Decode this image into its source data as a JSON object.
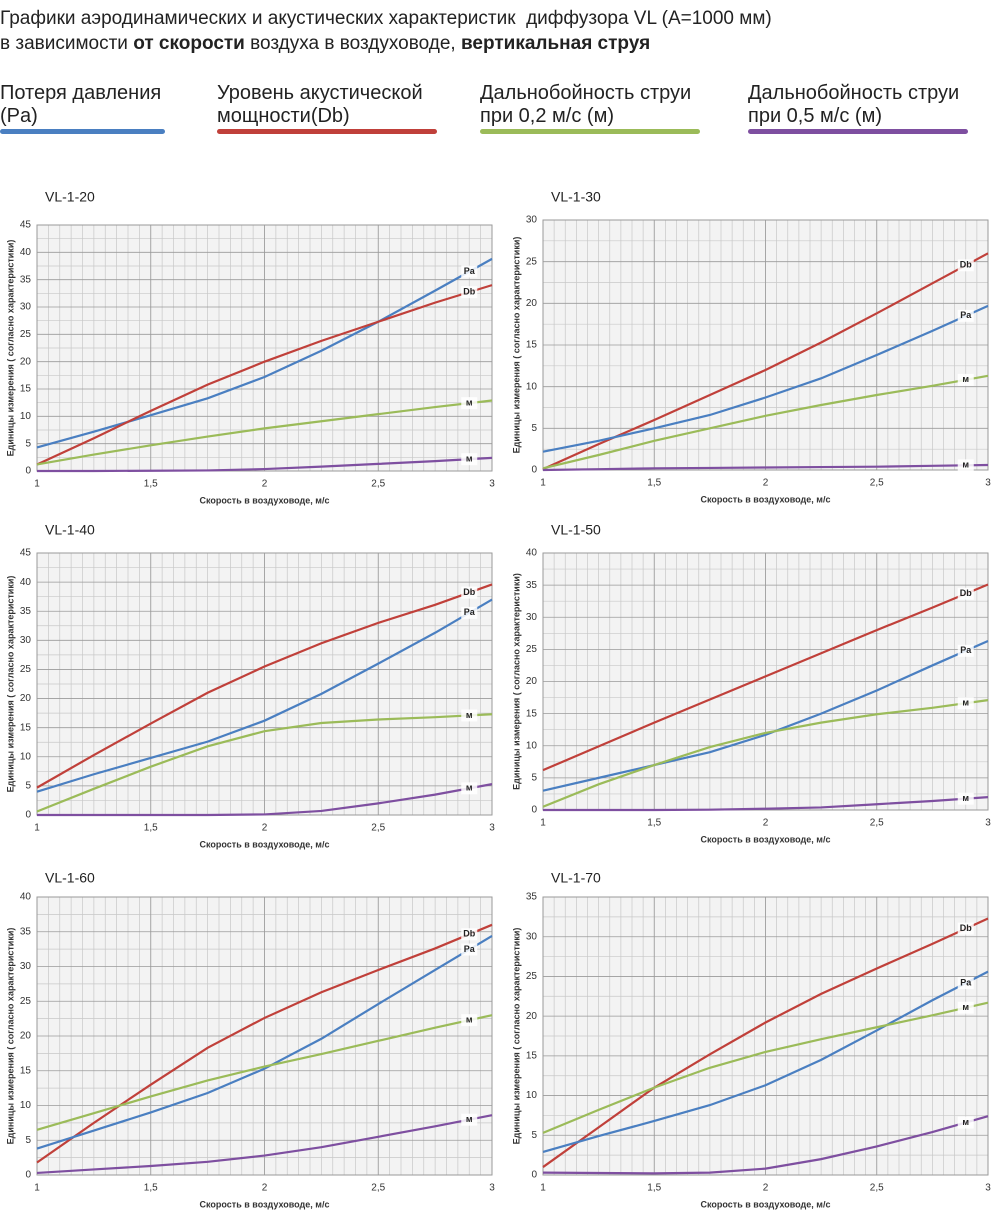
{
  "header": {
    "line1": "Графики аэродинамических и акустических характеристик  диффузора VL (A=1000 мм)",
    "line2": [
      {
        "text": "в зависимости ",
        "bold": false
      },
      {
        "text": "от скорости",
        "bold": true
      },
      {
        "text": " воздуха в воздуховоде, ",
        "bold": false
      },
      {
        "text": "вертикальная струя",
        "bold": true
      }
    ]
  },
  "legend": [
    {
      "name": "Потеря давления (Pa)",
      "color": "#4a7fc1"
    },
    {
      "name": "Уровень акустической мощности(Db)",
      "color": "#c0403a"
    },
    {
      "name": "Дальнобойность струи при 0,2 м/с (м)",
      "color": "#9bbb59"
    },
    {
      "name": "Дальнобойность струи при 0,5 м/с (м)",
      "color": "#7e4fa0"
    }
  ],
  "chart_data": [
    {
      "type": "line",
      "title": "VL-1-20",
      "x_label": "Скорость в воздуховоде, м/с",
      "y_label": "Единицы измерения ( согласно характеристики)",
      "x": [
        1,
        1.25,
        1.5,
        1.75,
        2,
        2.25,
        2.5,
        2.75,
        3
      ],
      "xlim": [
        1,
        3
      ],
      "xticks": [
        1,
        {
          "value": 1.5,
          "label": "1,5"
        },
        2,
        {
          "value": 2.5,
          "label": "2,5"
        },
        3
      ],
      "ylim": [
        0,
        45
      ],
      "yticks": [
        0,
        5,
        10,
        15,
        20,
        25,
        30,
        35,
        40,
        45
      ],
      "grid": true,
      "series": [
        {
          "label": "Pa",
          "color": "#4a7fc1",
          "values": [
            4.3,
            7.2,
            10.2,
            13.3,
            17.2,
            22,
            27.3,
            33,
            38.8
          ]
        },
        {
          "label": "Db",
          "color": "#c0403a",
          "values": [
            1.2,
            6,
            11,
            15.8,
            20,
            23.8,
            27.3,
            30.8,
            34
          ]
        },
        {
          "label": "м",
          "color": "#9bbb59",
          "values": [
            1.2,
            3,
            4.7,
            6.3,
            7.8,
            9.1,
            10.4,
            11.7,
            12.9
          ]
        },
        {
          "label": "м",
          "color": "#7e4fa0",
          "values": [
            0,
            0,
            0.05,
            0.1,
            0.35,
            0.8,
            1.3,
            1.8,
            2.4
          ]
        }
      ]
    },
    {
      "type": "line",
      "title": "VL-1-30",
      "x_label": "Скорость в воздуховоде, м/с",
      "y_label": "Единицы измерения ( согласно характеристики)",
      "x": [
        1,
        1.25,
        1.5,
        1.75,
        2,
        2.25,
        2.5,
        2.75,
        3
      ],
      "xlim": [
        1,
        3
      ],
      "xticks": [
        1,
        {
          "value": 1.5,
          "label": "1,5"
        },
        2,
        {
          "value": 2.5,
          "label": "2,5"
        },
        3
      ],
      "ylim": [
        0,
        30
      ],
      "yticks": [
        0,
        5,
        10,
        15,
        20,
        25,
        30
      ],
      "grid": true,
      "series": [
        {
          "label": "Db",
          "color": "#c0403a",
          "values": [
            0.1,
            3.1,
            6,
            9,
            12,
            15.3,
            18.8,
            22.4,
            26
          ]
        },
        {
          "label": "Pa",
          "color": "#4a7fc1",
          "values": [
            2.2,
            3.5,
            5,
            6.6,
            8.7,
            11,
            13.8,
            16.7,
            19.7
          ]
        },
        {
          "label": "м",
          "color": "#9bbb59",
          "values": [
            0.2,
            1.8,
            3.5,
            5,
            6.5,
            7.8,
            9,
            10.1,
            11.3
          ]
        },
        {
          "label": "м",
          "color": "#7e4fa0",
          "values": [
            0,
            0.1,
            0.2,
            0.25,
            0.3,
            0.35,
            0.4,
            0.5,
            0.6
          ]
        }
      ]
    },
    {
      "type": "line",
      "title": "VL-1-40",
      "x_label": "Скорость в воздуховоде, м/с",
      "y_label": "Единицы измерения ( согласно характеристики)",
      "x": [
        1,
        1.25,
        1.5,
        1.75,
        2,
        2.25,
        2.5,
        2.75,
        3
      ],
      "xlim": [
        1,
        3
      ],
      "xticks": [
        1,
        {
          "value": 1.5,
          "label": "1,5"
        },
        2,
        {
          "value": 2.5,
          "label": "2,5"
        },
        3
      ],
      "ylim": [
        0,
        45
      ],
      "yticks": [
        0,
        5,
        10,
        15,
        20,
        25,
        30,
        35,
        40,
        45
      ],
      "grid": true,
      "series": [
        {
          "label": "Db",
          "color": "#c0403a",
          "values": [
            4.7,
            10.3,
            15.7,
            21,
            25.5,
            29.5,
            33,
            36.1,
            39.6
          ]
        },
        {
          "label": "Pa",
          "color": "#4a7fc1",
          "values": [
            4,
            7,
            9.8,
            12.6,
            16.2,
            20.8,
            26,
            31.3,
            37
          ]
        },
        {
          "label": "м",
          "color": "#9bbb59",
          "values": [
            0.6,
            4.5,
            8.3,
            11.8,
            14.4,
            15.8,
            16.4,
            16.8,
            17.3
          ]
        },
        {
          "label": "м",
          "color": "#7e4fa0",
          "values": [
            0,
            0,
            0,
            0,
            0.1,
            0.7,
            2,
            3.5,
            5.3
          ]
        }
      ]
    },
    {
      "type": "line",
      "title": "VL-1-50",
      "x_label": "Скорость в воздуховоде, м/с",
      "y_label": "Единицы измерения ( согласно характеристики)",
      "x": [
        1,
        1.25,
        1.5,
        1.75,
        2,
        2.25,
        2.5,
        2.75,
        3
      ],
      "xlim": [
        1,
        3
      ],
      "xticks": [
        1,
        {
          "value": 1.5,
          "label": "1,5"
        },
        2,
        {
          "value": 2.5,
          "label": "2,5"
        },
        3
      ],
      "ylim": [
        0,
        40
      ],
      "yticks": [
        0,
        5,
        10,
        15,
        20,
        25,
        30,
        35,
        40
      ],
      "grid": true,
      "series": [
        {
          "label": "Db",
          "color": "#c0403a",
          "values": [
            6.2,
            9.9,
            13.6,
            17.2,
            20.8,
            24.4,
            28,
            31.5,
            35.1
          ]
        },
        {
          "label": "Pa",
          "color": "#4a7fc1",
          "values": [
            3,
            5,
            7,
            9,
            11.7,
            15,
            18.6,
            22.5,
            26.3
          ]
        },
        {
          "label": "м",
          "color": "#9bbb59",
          "values": [
            0.5,
            4,
            7,
            9.8,
            12,
            13.6,
            14.9,
            15.9,
            17.1
          ]
        },
        {
          "label": "м",
          "color": "#7e4fa0",
          "values": [
            0,
            0,
            0,
            0.05,
            0.2,
            0.4,
            0.9,
            1.4,
            2
          ]
        }
      ]
    },
    {
      "type": "line",
      "title": "VL-1-60",
      "x_label": "Скорость в воздуховоде, м/с",
      "y_label": "Единицы измерения ( согласно характеристики)",
      "x": [
        1,
        1.25,
        1.5,
        1.75,
        2,
        2.25,
        2.5,
        2.75,
        3
      ],
      "xlim": [
        1,
        3
      ],
      "xticks": [
        1,
        {
          "value": 1.5,
          "label": "1,5"
        },
        2,
        {
          "value": 2.5,
          "label": "2,5"
        },
        3
      ],
      "ylim": [
        0,
        40
      ],
      "yticks": [
        0,
        5,
        10,
        15,
        20,
        25,
        30,
        35,
        40
      ],
      "grid": true,
      "series": [
        {
          "label": "Db",
          "color": "#c0403a",
          "values": [
            1.8,
            7.5,
            13,
            18.3,
            22.6,
            26.3,
            29.5,
            32.6,
            36
          ]
        },
        {
          "label": "Pa",
          "color": "#4a7fc1",
          "values": [
            3.8,
            6.4,
            9,
            11.8,
            15.3,
            19.6,
            24.6,
            29.5,
            34.4
          ]
        },
        {
          "label": "м",
          "color": "#9bbb59",
          "values": [
            6.5,
            8.9,
            11.3,
            13.6,
            15.6,
            17.4,
            19.3,
            21.2,
            23
          ]
        },
        {
          "label": "м",
          "color": "#7e4fa0",
          "values": [
            0.3,
            0.8,
            1.3,
            1.9,
            2.8,
            4,
            5.5,
            7,
            8.6
          ]
        }
      ]
    },
    {
      "type": "line",
      "title": "VL-1-70",
      "x_label": "Скорость в воздуховоде, м/с",
      "y_label": "Единицы измерения ( согласно характеристики)",
      "x": [
        1,
        1.25,
        1.5,
        1.75,
        2,
        2.25,
        2.5,
        2.75,
        3
      ],
      "xlim": [
        1,
        3
      ],
      "xticks": [
        1,
        {
          "value": 1.5,
          "label": "1,5"
        },
        2,
        {
          "value": 2.5,
          "label": "2,5"
        },
        3
      ],
      "ylim": [
        0,
        35
      ],
      "yticks": [
        0,
        5,
        10,
        15,
        20,
        25,
        30,
        35
      ],
      "grid": true,
      "series": [
        {
          "label": "Db",
          "color": "#c0403a",
          "values": [
            1,
            6,
            11,
            15.2,
            19.2,
            22.8,
            26,
            29.1,
            32.3
          ]
        },
        {
          "label": "Pa",
          "color": "#4a7fc1",
          "values": [
            2.9,
            4.9,
            6.8,
            8.8,
            11.3,
            14.5,
            18.2,
            22,
            25.6
          ]
        },
        {
          "label": "м",
          "color": "#9bbb59",
          "values": [
            5.3,
            8.2,
            11,
            13.5,
            15.5,
            17.1,
            18.6,
            20.1,
            21.7
          ]
        },
        {
          "label": "м",
          "color": "#7e4fa0",
          "values": [
            0.3,
            0.25,
            0.2,
            0.3,
            0.8,
            2,
            3.6,
            5.4,
            7.4
          ]
        }
      ]
    }
  ]
}
